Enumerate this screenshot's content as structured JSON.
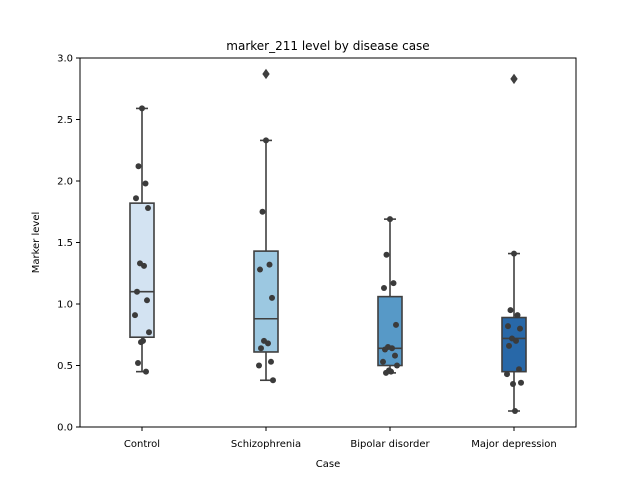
{
  "chart_data": {
    "type": "box",
    "title": "marker_211 level by disease case",
    "xlabel": "Case",
    "ylabel": "Marker level",
    "ylim": [
      0.0,
      3.0
    ],
    "yticks": [
      "0.0",
      "0.5",
      "1.0",
      "1.5",
      "2.0",
      "2.5",
      "3.0"
    ],
    "grid": false,
    "categories": [
      "Control",
      "Schizophrenia",
      "Bipolar disorder",
      "Major depression"
    ],
    "boxes": [
      {
        "category": "Control",
        "whisker_low": 0.45,
        "q1": 0.73,
        "median": 1.1,
        "q3": 1.82,
        "whisker_high": 2.59,
        "outliers": [],
        "color": "#d3e3f2"
      },
      {
        "category": "Schizophrenia",
        "whisker_low": 0.38,
        "q1": 0.61,
        "median": 0.88,
        "q3": 1.43,
        "whisker_high": 2.33,
        "outliers": [
          2.87
        ],
        "color": "#9cc8e1"
      },
      {
        "category": "Bipolar disorder",
        "whisker_low": 0.44,
        "q1": 0.5,
        "median": 0.64,
        "q3": 1.06,
        "whisker_high": 1.69,
        "outliers": [],
        "color": "#5799c7"
      },
      {
        "category": "Major depression",
        "whisker_low": 0.13,
        "q1": 0.45,
        "median": 0.72,
        "q3": 0.89,
        "whisker_high": 1.41,
        "outliers": [
          2.83
        ],
        "color": "#2868a8"
      }
    ],
    "points": [
      [
        2.59,
        2.12,
        1.98,
        1.86,
        1.78,
        1.33,
        1.31,
        1.1,
        1.03,
        0.91,
        0.77,
        0.69,
        0.7,
        0.52,
        0.45
      ],
      [
        2.33,
        1.75,
        1.32,
        1.28,
        1.05,
        0.7,
        0.68,
        0.64,
        0.53,
        0.5,
        0.38
      ],
      [
        1.69,
        1.4,
        1.17,
        1.13,
        0.83,
        0.65,
        0.64,
        0.63,
        0.58,
        0.53,
        0.5,
        0.46,
        0.45,
        0.44
      ],
      [
        1.41,
        0.95,
        0.91,
        0.82,
        0.8,
        0.72,
        0.7,
        0.66,
        0.47,
        0.43,
        0.36,
        0.35,
        0.13
      ]
    ],
    "point_color": "#3b3b3b"
  }
}
